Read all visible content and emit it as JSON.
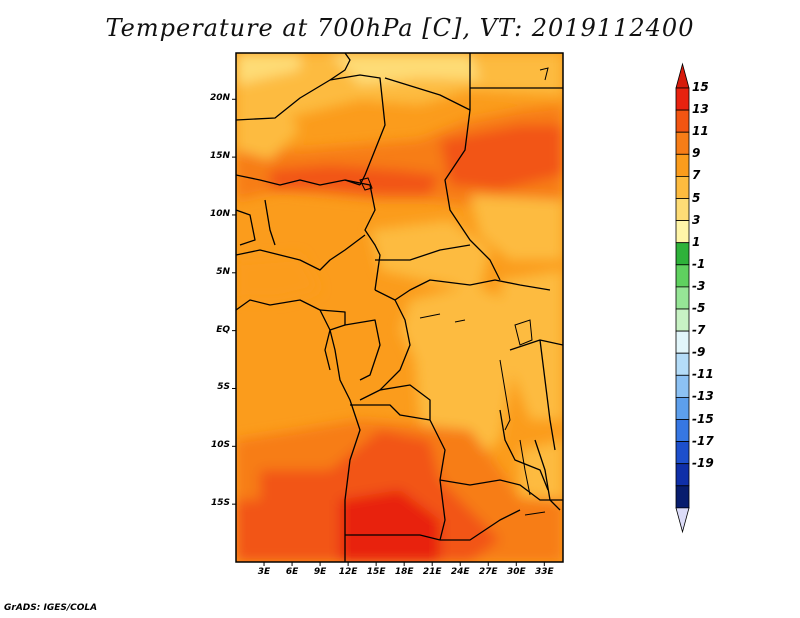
{
  "title": "Temperature at 700hPa [C], VT: 2019112400",
  "credit": "GrADS: IGES/COLA",
  "map": {
    "projection": "lat-lon",
    "variable": "Temperature at 700hPa",
    "units": "C",
    "lat_range": [
      -20,
      24
    ],
    "lon_range": [
      0,
      35
    ],
    "lat_ticks": [
      {
        "label": "20N",
        "value": 20
      },
      {
        "label": "15N",
        "value": 15
      },
      {
        "label": "10N",
        "value": 10
      },
      {
        "label": "5N",
        "value": 5
      },
      {
        "label": "EQ",
        "value": 0
      },
      {
        "label": "5S",
        "value": -5
      },
      {
        "label": "10S",
        "value": -10
      },
      {
        "label": "15S",
        "value": -15
      }
    ],
    "lon_ticks": [
      {
        "label": "3E",
        "value": 3
      },
      {
        "label": "6E",
        "value": 6
      },
      {
        "label": "9E",
        "value": 9
      },
      {
        "label": "12E",
        "value": 12
      },
      {
        "label": "15E",
        "value": 15
      },
      {
        "label": "18E",
        "value": 18
      },
      {
        "label": "21E",
        "value": 21
      },
      {
        "label": "24E",
        "value": 24
      },
      {
        "label": "27E",
        "value": 27
      },
      {
        "label": "30E",
        "value": 30
      },
      {
        "label": "33E",
        "value": 33
      }
    ],
    "dominant_values": {
      "north_sahara": "5-9",
      "sahel_band": "11-13",
      "central_basin": "7-9",
      "southwest_angola": "13-15"
    }
  },
  "colorbar": {
    "labels": [
      "15",
      "13",
      "11",
      "9",
      "7",
      "5",
      "3",
      "1",
      "-1",
      "-3",
      "-5",
      "-7",
      "-9",
      "-11",
      "-13",
      "-15",
      "-17",
      "-19"
    ],
    "colors": [
      "#e8220f",
      "#f25512",
      "#f77d17",
      "#fb9c1c",
      "#fdbb3f",
      "#fedc76",
      "#fff5a8",
      "#2eb23a",
      "#5fd15f",
      "#96e596",
      "#c8f2c4",
      "#e2f6fb",
      "#b4dcf8",
      "#8cc1f3",
      "#5d9fec",
      "#3677e3",
      "#1d4fcc",
      "#0f2fa8",
      "#081d6e"
    ],
    "top_arrow_color": "#d61a0b",
    "bottom_arrow_color": "#dcdcf8"
  }
}
